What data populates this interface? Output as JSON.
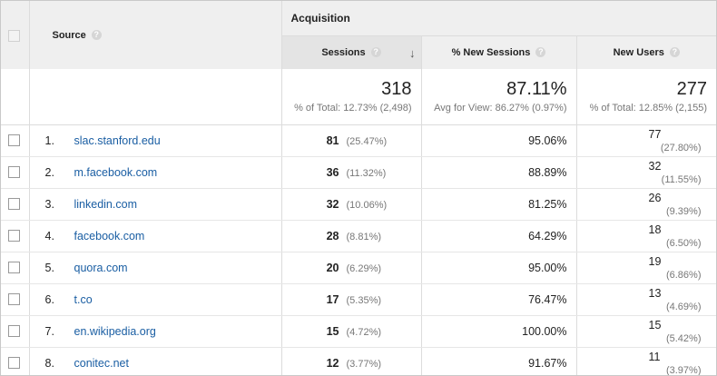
{
  "header": {
    "acquisition_label": "Acquisition",
    "source_label": "Source",
    "sessions_label": "Sessions",
    "new_sessions_label": "% New Sessions",
    "new_users_label": "New Users",
    "help_glyph": "?",
    "sort_glyph": "↓"
  },
  "totals": {
    "sessions": "318",
    "sessions_sub": "% of Total: 12.73% (2,498)",
    "new_sessions": "87.11%",
    "new_sessions_sub": "Avg for View: 86.27% (0.97%)",
    "new_users": "277",
    "new_users_sub": "% of Total: 12.85% (2,155)"
  },
  "rows": [
    {
      "index": "1.",
      "source": "slac.stanford.edu",
      "sessions": "81",
      "sessions_pct": "(25.47%)",
      "new_sessions": "95.06%",
      "new_users": "77",
      "new_users_pct": "(27.80%)"
    },
    {
      "index": "2.",
      "source": "m.facebook.com",
      "sessions": "36",
      "sessions_pct": "(11.32%)",
      "new_sessions": "88.89%",
      "new_users": "32",
      "new_users_pct": "(11.55%)"
    },
    {
      "index": "3.",
      "source": "linkedin.com",
      "sessions": "32",
      "sessions_pct": "(10.06%)",
      "new_sessions": "81.25%",
      "new_users": "26",
      "new_users_pct": "(9.39%)"
    },
    {
      "index": "4.",
      "source": "facebook.com",
      "sessions": "28",
      "sessions_pct": "(8.81%)",
      "new_sessions": "64.29%",
      "new_users": "18",
      "new_users_pct": "(6.50%)"
    },
    {
      "index": "5.",
      "source": "quora.com",
      "sessions": "20",
      "sessions_pct": "(6.29%)",
      "new_sessions": "95.00%",
      "new_users": "19",
      "new_users_pct": "(6.86%)"
    },
    {
      "index": "6.",
      "source": "t.co",
      "sessions": "17",
      "sessions_pct": "(5.35%)",
      "new_sessions": "76.47%",
      "new_users": "13",
      "new_users_pct": "(4.69%)"
    },
    {
      "index": "7.",
      "source": "en.wikipedia.org",
      "sessions": "15",
      "sessions_pct": "(4.72%)",
      "new_sessions": "100.00%",
      "new_users": "15",
      "new_users_pct": "(5.42%)"
    },
    {
      "index": "8.",
      "source": "conitec.net",
      "sessions": "12",
      "sessions_pct": "(3.77%)",
      "new_sessions": "91.67%",
      "new_users": "11",
      "new_users_pct": "(3.97%)"
    }
  ],
  "colors": {
    "link": "#1a5ea3",
    "header_bg": "#efefef",
    "muted": "#777777"
  }
}
